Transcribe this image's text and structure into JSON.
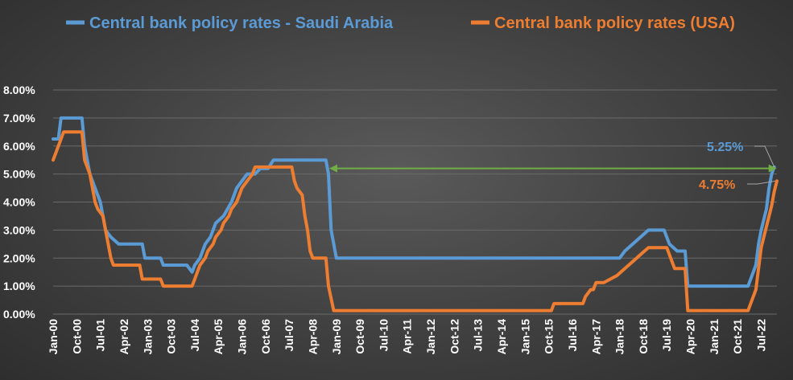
{
  "chart_data": {
    "type": "line",
    "title": "",
    "xlabel": "",
    "ylabel": "",
    "ylim": [
      0,
      8
    ],
    "y_ticks": [
      "0.00%",
      "1.00%",
      "2.00%",
      "3.00%",
      "4.00%",
      "5.00%",
      "6.00%",
      "7.00%",
      "8.00%"
    ],
    "x_tick_labels": [
      "Jan-00",
      "Oct-00",
      "Jul-01",
      "Apr-02",
      "Jan-03",
      "Oct-03",
      "Jul-04",
      "Apr-05",
      "Jan-06",
      "Oct-06",
      "Jul-07",
      "Apr-08",
      "Jan-09",
      "Oct-09",
      "Jul-10",
      "Apr-11",
      "Jan-12",
      "Oct-12",
      "Jul-13",
      "Apr-14",
      "Jan-15",
      "Oct-15",
      "Jul-16",
      "Apr-17",
      "Jan-18",
      "Oct-18",
      "Jul-19",
      "Apr-20",
      "Jan-21",
      "Oct-21",
      "Jul-22"
    ],
    "x_range": [
      "Jan-00",
      "Dec-22"
    ],
    "grid": "horizontal",
    "legend_position": "top",
    "colors": {
      "saudi": "#5b9bd5",
      "usa": "#ed7d31",
      "arrow": "#70ad47",
      "leader": "#a6a6a6"
    },
    "series": [
      {
        "name": "Central bank policy rates - Saudi Arabia",
        "key": "saudi",
        "points": [
          [
            "Jan-00",
            6.25
          ],
          [
            "Mar-00",
            6.25
          ],
          [
            "Apr-00",
            7.0
          ],
          [
            "Dec-00",
            7.0
          ],
          [
            "Jan-01",
            6.0
          ],
          [
            "Mar-01",
            5.0
          ],
          [
            "May-01",
            4.5
          ],
          [
            "Jul-01",
            4.0
          ],
          [
            "Sep-01",
            3.0
          ],
          [
            "Nov-01",
            2.75
          ],
          [
            "Feb-02",
            2.5
          ],
          [
            "Nov-02",
            2.5
          ],
          [
            "Dec-02",
            2.0
          ],
          [
            "Jun-03",
            2.0
          ],
          [
            "Jul-03",
            1.75
          ],
          [
            "Apr-04",
            1.75
          ],
          [
            "Jun-04",
            1.5
          ],
          [
            "Jul-04",
            1.75
          ],
          [
            "Sep-04",
            2.0
          ],
          [
            "Nov-04",
            2.5
          ],
          [
            "Jan-05",
            2.75
          ],
          [
            "Mar-05",
            3.25
          ],
          [
            "Jun-05",
            3.5
          ],
          [
            "Sep-05",
            4.0
          ],
          [
            "Nov-05",
            4.5
          ],
          [
            "Mar-06",
            5.0
          ],
          [
            "Jun-06",
            5.0
          ],
          [
            "Aug-06",
            5.2
          ],
          [
            "Nov-06",
            5.2
          ],
          [
            "Jan-07",
            5.5
          ],
          [
            "Sep-08",
            5.5
          ],
          [
            "Oct-08",
            5.0
          ],
          [
            "Nov-08",
            3.0
          ],
          [
            "Jan-09",
            2.0
          ],
          [
            "Jan-18",
            2.0
          ],
          [
            "Mar-18",
            2.25
          ],
          [
            "Jun-18",
            2.5
          ],
          [
            "Sep-18",
            2.75
          ],
          [
            "Dec-18",
            3.0
          ],
          [
            "Jun-19",
            3.0
          ],
          [
            "Aug-19",
            2.5
          ],
          [
            "Nov-19",
            2.25
          ],
          [
            "Feb-20",
            2.25
          ],
          [
            "Mar-20",
            1.0
          ],
          [
            "Feb-22",
            1.0
          ],
          [
            "Mar-22",
            1.25
          ],
          [
            "May-22",
            1.75
          ],
          [
            "Jun-22",
            2.5
          ],
          [
            "Jul-22",
            3.0
          ],
          [
            "Sep-22",
            3.75
          ],
          [
            "Oct-22",
            4.5
          ],
          [
            "Nov-22",
            5.0
          ],
          [
            "Dec-22",
            5.25
          ]
        ]
      },
      {
        "name": "Central bank policy rates (USA)",
        "key": "usa",
        "points": [
          [
            "Jan-00",
            5.5
          ],
          [
            "Feb-00",
            5.75
          ],
          [
            "Mar-00",
            6.0
          ],
          [
            "May-00",
            6.5
          ],
          [
            "Dec-00",
            6.5
          ],
          [
            "Jan-01",
            5.5
          ],
          [
            "Mar-01",
            5.0
          ],
          [
            "Apr-01",
            4.5
          ],
          [
            "May-01",
            4.0
          ],
          [
            "Jun-01",
            3.75
          ],
          [
            "Aug-01",
            3.5
          ],
          [
            "Sep-01",
            3.0
          ],
          [
            "Oct-01",
            2.5
          ],
          [
            "Nov-01",
            2.0
          ],
          [
            "Dec-01",
            1.75
          ],
          [
            "Oct-02",
            1.75
          ],
          [
            "Nov-02",
            1.25
          ],
          [
            "Jun-03",
            1.25
          ],
          [
            "Jul-03",
            1.0
          ],
          [
            "Jun-04",
            1.0
          ],
          [
            "Jul-04",
            1.25
          ],
          [
            "Aug-04",
            1.5
          ],
          [
            "Sep-04",
            1.75
          ],
          [
            "Nov-04",
            2.0
          ],
          [
            "Dec-04",
            2.25
          ],
          [
            "Feb-05",
            2.5
          ],
          [
            "Mar-05",
            2.75
          ],
          [
            "May-05",
            3.0
          ],
          [
            "Jun-05",
            3.25
          ],
          [
            "Aug-05",
            3.5
          ],
          [
            "Sep-05",
            3.75
          ],
          [
            "Nov-05",
            4.0
          ],
          [
            "Dec-05",
            4.25
          ],
          [
            "Jan-06",
            4.5
          ],
          [
            "Mar-06",
            4.75
          ],
          [
            "May-06",
            5.0
          ],
          [
            "Jun-06",
            5.25
          ],
          [
            "Aug-07",
            5.25
          ],
          [
            "Sep-07",
            4.75
          ],
          [
            "Oct-07",
            4.5
          ],
          [
            "Dec-07",
            4.25
          ],
          [
            "Jan-08",
            3.5
          ],
          [
            "Feb-08",
            3.0
          ],
          [
            "Mar-08",
            2.25
          ],
          [
            "Apr-08",
            2.0
          ],
          [
            "Sep-08",
            2.0
          ],
          [
            "Oct-08",
            1.0
          ],
          [
            "Dec-08",
            0.125
          ],
          [
            "Nov-15",
            0.125
          ],
          [
            "Dec-15",
            0.375
          ],
          [
            "Nov-16",
            0.375
          ],
          [
            "Dec-16",
            0.625
          ],
          [
            "Feb-17",
            0.875
          ],
          [
            "Mar-17",
            0.875
          ],
          [
            "Apr-17",
            1.125
          ],
          [
            "Jun-17",
            1.125
          ],
          [
            "Jul-17",
            1.125
          ],
          [
            "Dec-17",
            1.375
          ],
          [
            "Mar-18",
            1.625
          ],
          [
            "Jun-18",
            1.875
          ],
          [
            "Sep-18",
            2.125
          ],
          [
            "Dec-18",
            2.375
          ],
          [
            "Jul-19",
            2.375
          ],
          [
            "Aug-19",
            2.125
          ],
          [
            "Sep-19",
            1.875
          ],
          [
            "Oct-19",
            1.625
          ],
          [
            "Feb-20",
            1.625
          ],
          [
            "Mar-20",
            0.125
          ],
          [
            "Feb-22",
            0.125
          ],
          [
            "Mar-22",
            0.375
          ],
          [
            "May-22",
            0.875
          ],
          [
            "Jun-22",
            1.625
          ],
          [
            "Jul-22",
            2.375
          ],
          [
            "Sep-22",
            3.125
          ],
          [
            "Nov-22",
            3.875
          ],
          [
            "Dec-22",
            4.375
          ],
          [
            "Jan-23",
            4.75
          ]
        ]
      }
    ],
    "annotations": [
      {
        "key": "saudi",
        "text": "5.25%"
      },
      {
        "key": "usa",
        "text": "4.75%"
      }
    ],
    "arrow": {
      "from": "Oct-08",
      "to": "Dec-22",
      "y": 5.2
    }
  }
}
